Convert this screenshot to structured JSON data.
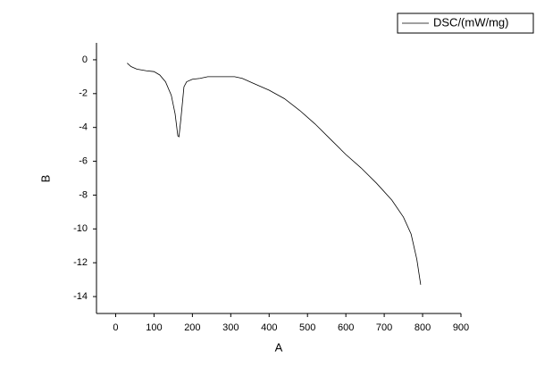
{
  "chart_data": {
    "type": "line",
    "xlabel": "A",
    "ylabel": "B",
    "xlim": [
      -50,
      900
    ],
    "xticks": [
      0,
      100,
      200,
      300,
      400,
      500,
      600,
      700,
      800,
      900
    ],
    "ylim": [
      -15,
      1
    ],
    "yticks": [
      0,
      -2,
      -4,
      -6,
      -8,
      -10,
      -12,
      -14
    ],
    "legend": "upper right",
    "series": [
      {
        "name": "DSC/(mW/mg)",
        "color": "#000000",
        "x": [
          30,
          40,
          55,
          80,
          100,
          115,
          130,
          145,
          155,
          162,
          165,
          170,
          178,
          185,
          200,
          220,
          240,
          280,
          310,
          330,
          360,
          400,
          440,
          480,
          520,
          560,
          600,
          640,
          680,
          720,
          750,
          770,
          785,
          795
        ],
        "values": [
          -0.2,
          -0.4,
          -0.55,
          -0.65,
          -0.7,
          -0.9,
          -1.3,
          -2.1,
          -3.2,
          -4.5,
          -4.55,
          -3.5,
          -1.6,
          -1.3,
          -1.15,
          -1.1,
          -1.0,
          -1.0,
          -1.0,
          -1.1,
          -1.4,
          -1.8,
          -2.3,
          -3.0,
          -3.8,
          -4.7,
          -5.6,
          -6.4,
          -7.3,
          -8.3,
          -9.3,
          -10.3,
          -11.8,
          -13.3
        ]
      }
    ]
  }
}
